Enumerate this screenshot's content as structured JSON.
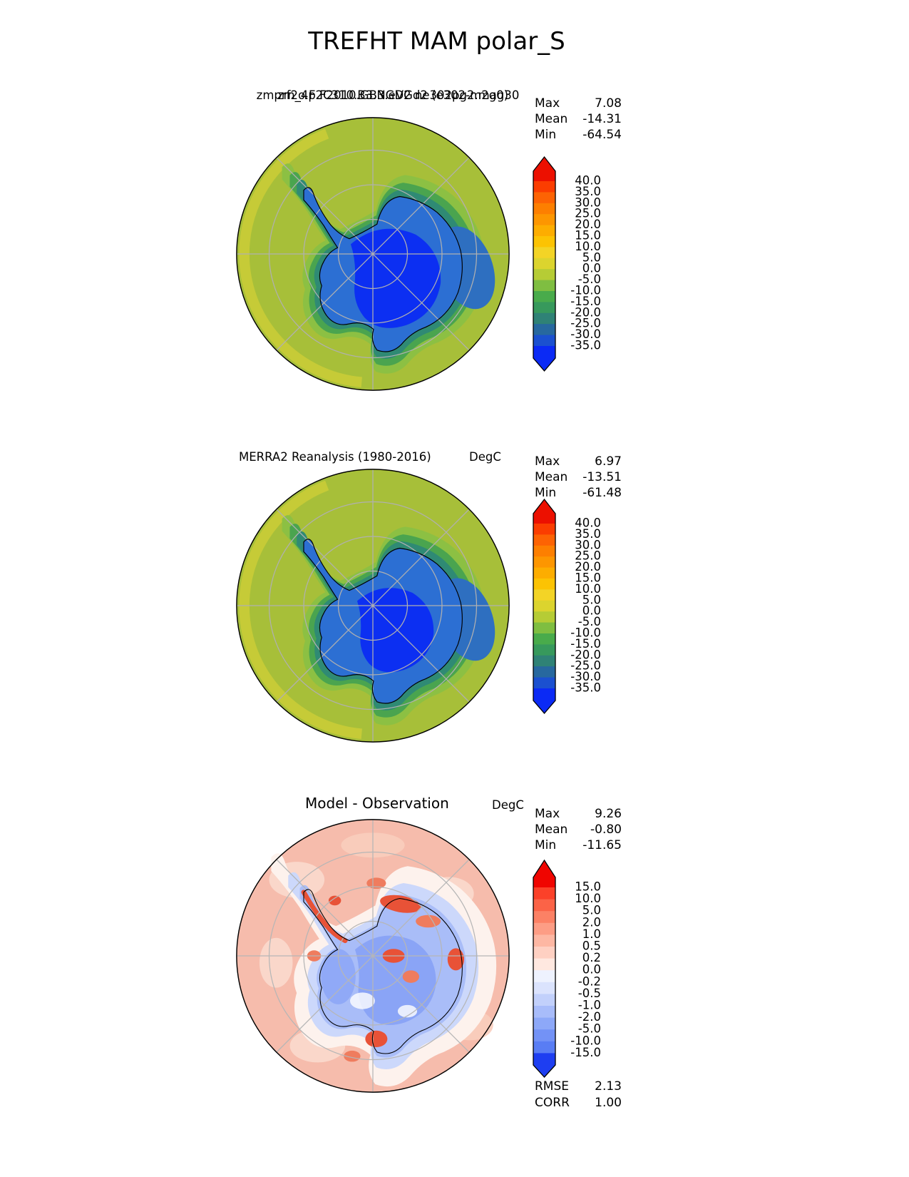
{
  "page": {
    "title": "TREFHT MAM polar_S"
  },
  "panels": [
    {
      "id": "model",
      "title_a": "zmprf2o.F2C310.B3.NGD2 ne302pg2.mag30",
      "title_b": "zm_4p.F2010.GB3.eVGd2 (e302-m2g0)",
      "stats": {
        "max_label": "Max",
        "max": "7.08",
        "mean_label": "Mean",
        "mean": "-14.31",
        "min_label": "Min",
        "min": "-64.54"
      }
    },
    {
      "id": "obs",
      "title": "MERRA2 Reanalysis (1980-2016)",
      "units": "DegC",
      "stats": {
        "max_label": "Max",
        "max": "6.97",
        "mean_label": "Mean",
        "mean": "-13.51",
        "min_label": "Min",
        "min": "-61.48"
      }
    },
    {
      "id": "diff",
      "title": "Model - Observation",
      "units": "DegC",
      "stats": {
        "max_label": "Max",
        "max": "9.26",
        "mean_label": "Mean",
        "mean": "-0.80",
        "min_label": "Min",
        "min": "-11.65"
      },
      "metrics": {
        "rmse_label": "RMSE",
        "rmse": "2.13",
        "corr_label": "CORR",
        "corr": "1.00"
      }
    }
  ],
  "colorbars": {
    "temp": {
      "labels": [
        "40.0",
        "35.0",
        "30.0",
        "25.0",
        "20.0",
        "15.0",
        "10.0",
        "5.0",
        "0.0",
        "-5.0",
        "-10.0",
        "-15.0",
        "-20.0",
        "-25.0",
        "-30.0",
        "-35.0"
      ],
      "colors": [
        "#ec1000",
        "#fb3d00",
        "#fd6303",
        "#fd7f00",
        "#fd9600",
        "#fdad00",
        "#fcc303",
        "#f3d426",
        "#dcd42e",
        "#b6cc35",
        "#7fbe41",
        "#49ab4b",
        "#37995c",
        "#2f8276",
        "#27689f",
        "#1b50d0",
        "#0b2af5"
      ]
    },
    "diff": {
      "labels": [
        "15.0",
        "10.0",
        "5.0",
        "2.0",
        "1.0",
        "0.5",
        "0.2",
        "0.0",
        "-0.2",
        "-0.5",
        "-1.0",
        "-2.0",
        "-5.0",
        "-10.0",
        "-15.0"
      ],
      "colors": [
        "#f00500",
        "#fb4129",
        "#fb6347",
        "#fc8165",
        "#fd9d85",
        "#fdb7a3",
        "#fed0c2",
        "#ffe8e0",
        "#eef2fe",
        "#dbe3fd",
        "#c2d0fb",
        "#a8bcfa",
        "#8da8f8",
        "#7392f6",
        "#597df4",
        "#1e3ef1"
      ]
    }
  },
  "map_palettes": {
    "temp": {
      "ocean": "#a7bf39",
      "ocean_warm": "#c6cb37",
      "fringe": "#8cc043",
      "mid": "#4aa44f",
      "teal": "#2f8a74",
      "sea_cold": "#2e6fc0",
      "body": "#2c6fd3",
      "core": "#0c2ff2",
      "grid": "#b0b0b0",
      "coast": "#000000",
      "rim": "#000000"
    },
    "diff": {
      "base": "#f6bcac",
      "mottle1": "#fbd9cd",
      "mottle2": "#f9cdbd",
      "band_white": "#fdf2ed",
      "blue_outer": "#ccd8fb",
      "blue_mid": "#a9bdf8",
      "blue_deep": "#8aa4f6",
      "red": "#e85237",
      "red_light": "#ef7c5e",
      "white": "#ffffff",
      "grid": "#b6b6b6",
      "coast": "#000000",
      "rim": "#000000"
    }
  },
  "chart_data": [
    {
      "type": "heatmap",
      "subtype": "south-polar-stereographic-contour-map",
      "title": "TREFHT MAM polar_S",
      "panel": "model (overlapping garbled case-name titles)",
      "panel_title_overlap": [
        "zmprf2o.F2C310.B3.NGD2 ne302pg2.mag30",
        "zm_4p.F2010.GB3.eVGd2 (e302-m2g0)"
      ],
      "units": "DegC",
      "stats": {
        "max": 7.08,
        "mean": -14.31,
        "min": -64.54
      },
      "contour_levels": [
        40,
        35,
        30,
        25,
        20,
        15,
        10,
        5,
        0,
        -5,
        -10,
        -15,
        -20,
        -25,
        -30,
        -35
      ],
      "colormap": "rainbow red-orange-yellow-green-blue, extended both ends",
      "legend_position": "right vertical colorbar with pointed extend arrows"
    },
    {
      "type": "heatmap",
      "subtype": "south-polar-stereographic-contour-map",
      "panel": "observation",
      "panel_title": "MERRA2 Reanalysis (1980-2016)",
      "units": "DegC",
      "stats": {
        "max": 6.97,
        "mean": -13.51,
        "min": -61.48
      },
      "contour_levels": [
        40,
        35,
        30,
        25,
        20,
        15,
        10,
        5,
        0,
        -5,
        -10,
        -15,
        -20,
        -25,
        -30,
        -35
      ],
      "colormap": "rainbow red-orange-yellow-green-blue, extended both ends",
      "legend_position": "right vertical colorbar with pointed extend arrows"
    },
    {
      "type": "heatmap",
      "subtype": "south-polar-stereographic-contour-map",
      "panel": "difference",
      "panel_title": "Model - Observation",
      "units": "DegC",
      "stats": {
        "max": 9.26,
        "mean": -0.8,
        "min": -11.65
      },
      "metrics": {
        "RMSE": 2.13,
        "CORR": 1.0
      },
      "contour_levels": [
        15,
        10,
        5,
        2,
        1,
        0.5,
        0.2,
        0,
        -0.2,
        -0.5,
        -1,
        -2,
        -5,
        -10,
        -15
      ],
      "colormap": "diverging blue-white-red, extended both ends",
      "legend_position": "right vertical colorbar with pointed extend arrows"
    }
  ]
}
